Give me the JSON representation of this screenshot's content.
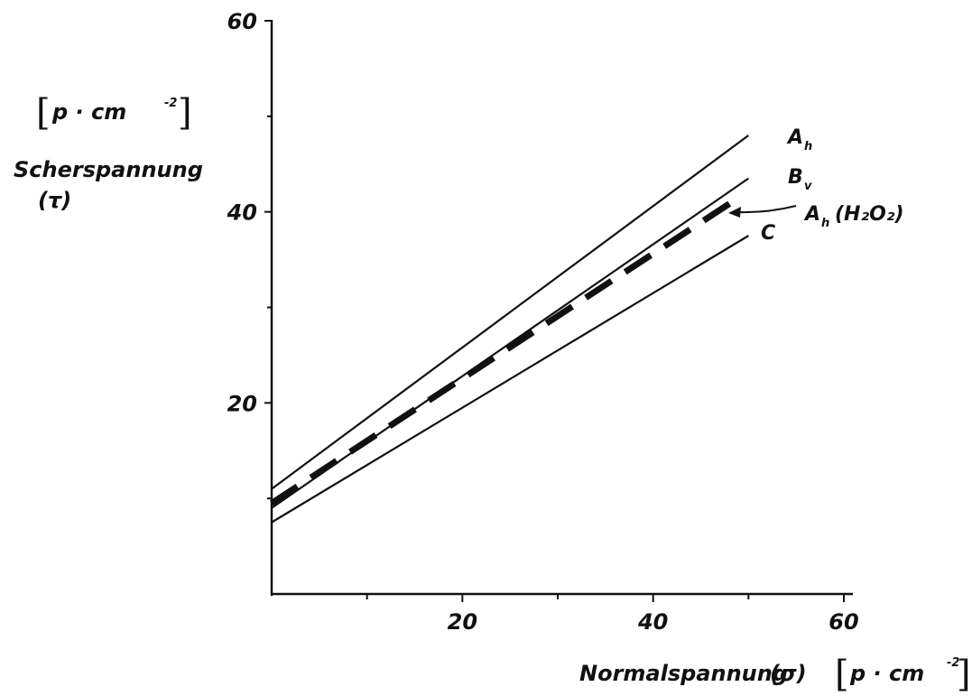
{
  "chart_data": {
    "type": "line",
    "title": "",
    "xlabel": "Normalspannung",
    "xlabel_symbol": "(σ)",
    "ylabel": "Scherspannung",
    "ylabel_symbol": "(τ)",
    "unit": {
      "base": "p · cm",
      "exponent": "-2"
    },
    "x_ticks": [
      "20",
      "40",
      "60"
    ],
    "y_ticks": [
      "20",
      "40",
      "60"
    ],
    "xlim": [
      0,
      60
    ],
    "ylim": [
      0,
      60
    ],
    "grid": false,
    "series": [
      {
        "name": "A",
        "subscript": "h",
        "suffix": "",
        "style": "solid",
        "x": [
          0,
          50
        ],
        "y": [
          11,
          48
        ]
      },
      {
        "name": "B",
        "subscript": "v",
        "suffix": "",
        "style": "solid",
        "x": [
          0,
          50
        ],
        "y": [
          9,
          43.5
        ]
      },
      {
        "name": "A",
        "subscript": "h",
        "suffix": "(H₂O₂)",
        "style": "dashed",
        "x": [
          0,
          49
        ],
        "y": [
          9.5,
          41.5
        ]
      },
      {
        "name": "C",
        "subscript": "",
        "suffix": "",
        "style": "solid",
        "x": [
          0,
          50
        ],
        "y": [
          7.5,
          37.5
        ]
      }
    ]
  }
}
